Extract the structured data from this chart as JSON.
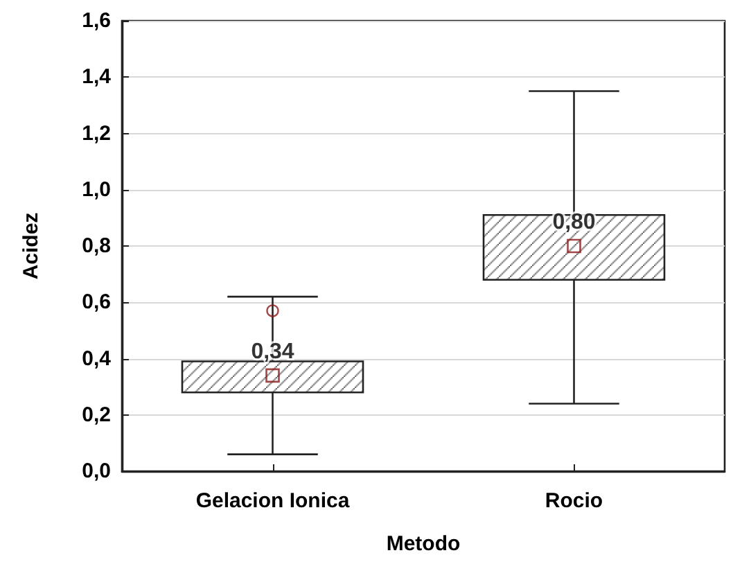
{
  "chart_data": {
    "type": "box",
    "xlabel": "Metodo",
    "ylabel": "Acidez",
    "categories": [
      "Gelacion Ionica",
      "Rocio"
    ],
    "boxes": [
      {
        "low": 0.06,
        "q1": 0.28,
        "median": 0.34,
        "q3": 0.39,
        "high": 0.62,
        "outliers": [
          0.57
        ]
      },
      {
        "low": 0.24,
        "q1": 0.68,
        "median": 0.8,
        "q3": 0.91,
        "high": 1.35
      }
    ],
    "value_labels": [
      "0,34",
      "0,80"
    ],
    "color": "#222222",
    "ylim": [
      0,
      1.6
    ],
    "yticks": [
      {
        "value": 0,
        "label": "0,0"
      },
      {
        "value": 0.2,
        "label": "0,2"
      },
      {
        "value": 0.4,
        "label": "0,4"
      },
      {
        "value": 0.6,
        "label": "0,6"
      },
      {
        "value": 0.8,
        "label": "0,8"
      },
      {
        "value": 1.0,
        "label": "1,0"
      },
      {
        "value": 1.2,
        "label": "1,2"
      },
      {
        "value": 1.4,
        "label": "1,4"
      },
      {
        "value": 1.6,
        "label": "1,6"
      }
    ],
    "grid": "y"
  }
}
